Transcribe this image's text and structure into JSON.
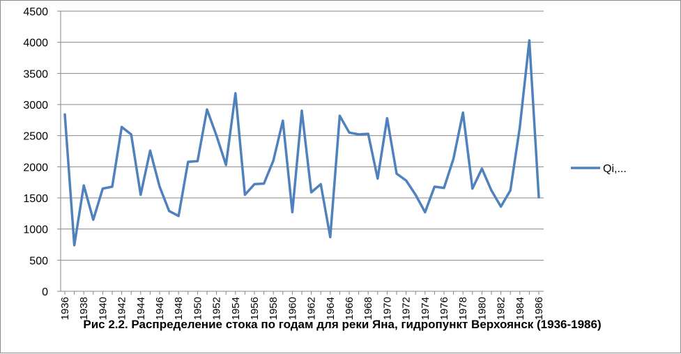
{
  "chart_data": {
    "type": "line",
    "title": "Рис 2.2. Распределение стока по годам для реки Яна, гидропункт Верхоянск (1936-1986)",
    "xlabel": "",
    "ylabel": "",
    "ylim": [
      0,
      4500
    ],
    "yticks": [
      0,
      500,
      1000,
      1500,
      2000,
      2500,
      3000,
      3500,
      4000,
      4500
    ],
    "xticks": [
      1936,
      1938,
      1940,
      1942,
      1944,
      1946,
      1948,
      1950,
      1952,
      1954,
      1956,
      1958,
      1960,
      1962,
      1964,
      1966,
      1968,
      1970,
      1972,
      1974,
      1976,
      1978,
      1980,
      1982,
      1984,
      1986
    ],
    "grid": "horizontal",
    "legend_position": "right",
    "series": [
      {
        "name": "Qi,...",
        "color": "#4f81bd",
        "x": [
          1936,
          1937,
          1938,
          1939,
          1940,
          1941,
          1942,
          1943,
          1944,
          1945,
          1946,
          1947,
          1948,
          1949,
          1950,
          1951,
          1952,
          1953,
          1954,
          1955,
          1956,
          1957,
          1958,
          1959,
          1960,
          1961,
          1962,
          1963,
          1964,
          1965,
          1966,
          1967,
          1968,
          1969,
          1970,
          1971,
          1972,
          1973,
          1974,
          1975,
          1976,
          1977,
          1978,
          1979,
          1980,
          1981,
          1982,
          1983,
          1984,
          1985,
          1986
        ],
        "values": [
          2840,
          740,
          1700,
          1150,
          1650,
          1680,
          2640,
          2520,
          1550,
          2260,
          1680,
          1290,
          1210,
          2080,
          2090,
          2920,
          2500,
          2030,
          3180,
          1550,
          1720,
          1730,
          2100,
          2740,
          1270,
          2900,
          1590,
          1720,
          870,
          2820,
          2550,
          2520,
          2530,
          1810,
          2780,
          1890,
          1780,
          1550,
          1270,
          1680,
          1660,
          2130,
          2870,
          1650,
          1970,
          1620,
          1360,
          1620,
          2640,
          4030,
          1510
        ]
      }
    ]
  }
}
